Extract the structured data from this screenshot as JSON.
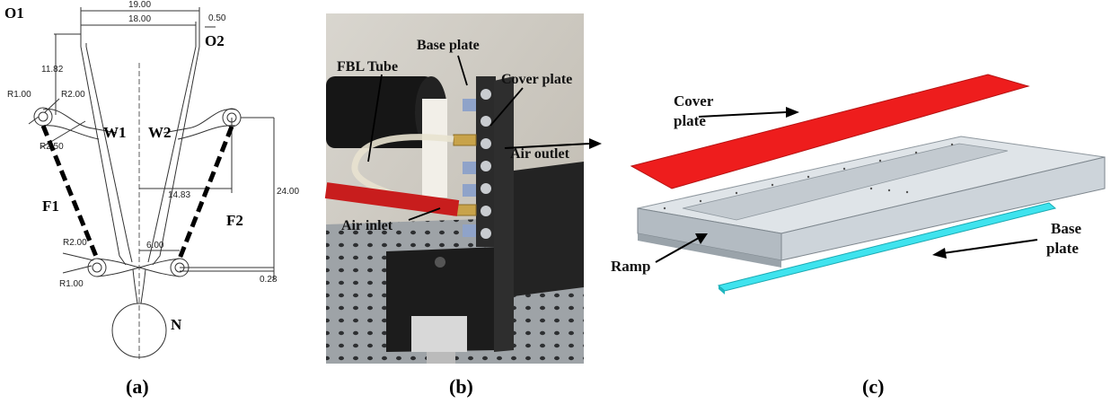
{
  "panel_a": {
    "caption": "(a)",
    "labels": {
      "o1": "O1",
      "o2": "O2",
      "w1": "W1",
      "w2": "W2",
      "f1": "F1",
      "f2": "F2",
      "n": "N"
    },
    "dims": {
      "d19": "19.00",
      "d18": "18.00",
      "d050": "0.50",
      "d1182": "11.82",
      "r100a": "R1.00",
      "r200a": "R2.00",
      "r250": "R2.50",
      "d1483": "14.83",
      "d2400": "24.00",
      "r200b": "R2.00",
      "d600": "6.00",
      "r100b": "R1.00",
      "d028": "0.28"
    }
  },
  "panel_b": {
    "caption": "(b)",
    "labels": {
      "base_plate": "Base plate",
      "cover_plate": "Cover plate",
      "fbl_tube": "FBL Tube",
      "air_outlet": "Air outlet",
      "air_inlet": "Air inlet"
    }
  },
  "panel_c": {
    "caption": "(c)",
    "labels": {
      "cover_plate_1": "Cover",
      "cover_plate_2": "plate",
      "base_plate_1": "Base",
      "base_plate_2": "plate",
      "ramp": "Ramp"
    },
    "colors": {
      "cover": "#ee1d1d",
      "base": "#3fe3ee",
      "body": "#cfd6dc"
    }
  }
}
